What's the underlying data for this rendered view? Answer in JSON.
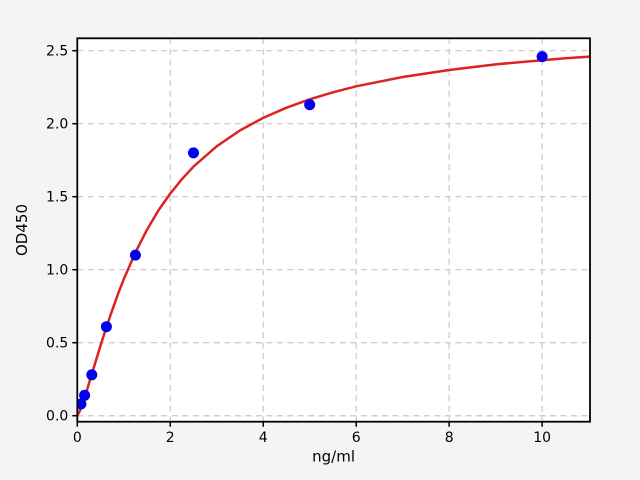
{
  "figure": {
    "background_color": "#f4f4f5",
    "plot_background_color": "#ffffff",
    "grid_color": "#c8c8c8",
    "spine_color": "#000000"
  },
  "chart_data": {
    "type": "scatter",
    "title": "",
    "xlabel": "ng/ml",
    "ylabel": "OD450",
    "xlim": [
      0,
      11.03
    ],
    "ylim": [
      -0.041,
      2.585
    ],
    "grid": true,
    "grid_style": "dashed",
    "legend_position": "none",
    "x_ticks": [
      0,
      2,
      4,
      6,
      8,
      10
    ],
    "x_tick_labels": [
      "0",
      "2",
      "4",
      "6",
      "8",
      "10"
    ],
    "y_ticks": [
      0.0,
      0.5,
      1.0,
      1.5,
      2.0,
      2.5
    ],
    "y_tick_labels": [
      "0.0",
      "0.5",
      "1.0",
      "1.5",
      "2.0",
      "2.5"
    ],
    "series": [
      {
        "name": "standard-points",
        "type": "scatter",
        "color": "#0000ee",
        "marker": "circle",
        "marker_radius": 5.5,
        "points": [
          [
            0.078,
            0.08
          ],
          [
            0.156,
            0.14
          ],
          [
            0.3125,
            0.28
          ],
          [
            0.625,
            0.61
          ],
          [
            1.25,
            1.1
          ],
          [
            2.5,
            1.8
          ],
          [
            5.0,
            2.13
          ],
          [
            10.0,
            2.46
          ]
        ]
      },
      {
        "name": "fitted-curve",
        "type": "line",
        "color": "#dd2222",
        "line_width": 2.5,
        "points": [
          [
            0,
            0
          ],
          [
            0.05,
            0.029
          ],
          [
            0.1,
            0.07
          ],
          [
            0.15,
            0.117
          ],
          [
            0.2,
            0.167
          ],
          [
            0.25,
            0.219
          ],
          [
            0.3,
            0.271
          ],
          [
            0.4,
            0.377
          ],
          [
            0.5,
            0.48
          ],
          [
            0.625,
            0.606
          ],
          [
            0.75,
            0.723
          ],
          [
            0.875,
            0.833
          ],
          [
            1.0,
            0.936
          ],
          [
            1.25,
            1.118
          ],
          [
            1.5,
            1.274
          ],
          [
            1.75,
            1.408
          ],
          [
            2.0,
            1.522
          ],
          [
            2.25,
            1.62
          ],
          [
            2.5,
            1.706
          ],
          [
            3.0,
            1.845
          ],
          [
            3.5,
            1.954
          ],
          [
            4.0,
            2.04
          ],
          [
            4.5,
            2.11
          ],
          [
            5.0,
            2.167
          ],
          [
            5.5,
            2.215
          ],
          [
            6.0,
            2.256
          ],
          [
            7.0,
            2.32
          ],
          [
            8.0,
            2.368
          ],
          [
            9.0,
            2.406
          ],
          [
            10.0,
            2.435
          ],
          [
            10.5,
            2.448
          ],
          [
            11.03,
            2.46
          ]
        ]
      }
    ]
  }
}
